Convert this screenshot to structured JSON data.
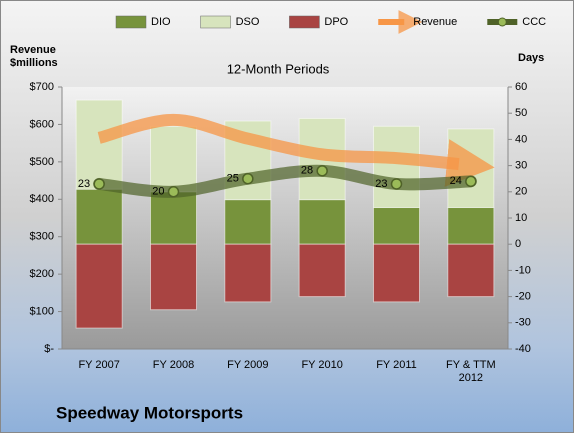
{
  "chart_data": {
    "type": "bar",
    "title": "12-Month Periods",
    "ylabel": "Revenue $millions",
    "y2label": "Days",
    "footer": "Speedway Motorsports",
    "legend": "top",
    "categories": [
      "FY 2007",
      "FY 2008",
      "FY 2009",
      "FY 2010",
      "FY 2011",
      "FY & TTM 2012"
    ],
    "ylim": [
      0,
      700
    ],
    "yticks": [
      {
        "value": 0,
        "label": "$-"
      },
      {
        "value": 100,
        "label": "$100"
      },
      {
        "value": 200,
        "label": "$200"
      },
      {
        "value": 300,
        "label": "$300"
      },
      {
        "value": 400,
        "label": "$400"
      },
      {
        "value": 500,
        "label": "$500"
      },
      {
        "value": 600,
        "label": "$600"
      },
      {
        "value": 700,
        "label": "$700"
      }
    ],
    "y2lim": [
      -40,
      60
    ],
    "y2ticks": [
      -40,
      -30,
      -20,
      -10,
      0,
      10,
      20,
      30,
      40,
      50,
      60
    ],
    "series": [
      {
        "name": "DIO",
        "type": "bar",
        "axis": "y2",
        "color": "#77933c",
        "values": [
          21,
          20,
          17,
          17,
          14,
          14
        ]
      },
      {
        "name": "DSO",
        "type": "bar",
        "axis": "y2",
        "color": "#d7e4bd",
        "values": [
          34,
          25,
          30,
          31,
          31,
          30
        ]
      },
      {
        "name": "DPO",
        "type": "bar",
        "axis": "y2",
        "color": "#a94442",
        "values": [
          -32,
          -25,
          -22,
          -20,
          -22,
          -20
        ]
      },
      {
        "name": "Revenue",
        "type": "arrow",
        "axis": "y",
        "color": "#f79646",
        "values": [
          564,
          612,
          562,
          520,
          510,
          494
        ]
      },
      {
        "name": "CCC",
        "type": "line",
        "axis": "y2",
        "color": "#4f6228",
        "values": [
          23,
          20,
          25,
          28,
          23,
          24
        ]
      }
    ]
  }
}
